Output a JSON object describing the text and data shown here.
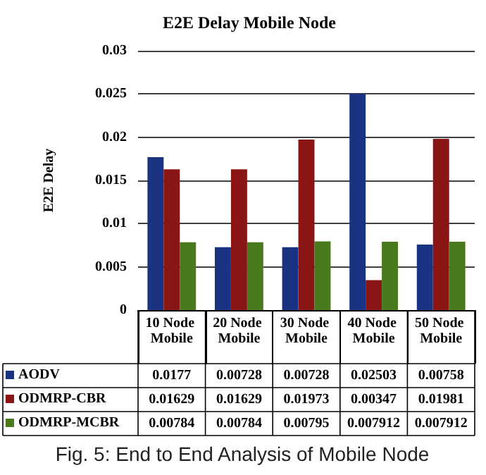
{
  "chart_data": {
    "type": "bar",
    "title": "E2E Delay Mobile Node",
    "ylabel": "E2E Delay",
    "categories": [
      "10 Node Mobile",
      "20 Node Mobile",
      "30 Node Mobile",
      "40 Node Mobile",
      "50 Node Mobile"
    ],
    "series": [
      {
        "name": "AODV",
        "color": "#1a3282",
        "values": [
          0.0177,
          0.00728,
          0.00728,
          0.02503,
          0.00758
        ]
      },
      {
        "name": "ODMRP-CBR",
        "color": "#8a1515",
        "values": [
          0.01629,
          0.01629,
          0.01973,
          0.00347,
          0.01981
        ]
      },
      {
        "name": "ODMRP-MCBR",
        "color": "#4b7a1c",
        "values": [
          0.00784,
          0.00784,
          0.00795,
          0.007912,
          0.007912
        ]
      }
    ],
    "ylim": [
      0,
      0.03
    ],
    "yticks": [
      0,
      0.005,
      0.01,
      0.015,
      0.02,
      0.025,
      0.03
    ],
    "grid": "y",
    "legend": "bottom left",
    "data_labels": true,
    "annotations": [
      "Fig. 5: End to End Analysis of Mobile Node"
    ]
  }
}
